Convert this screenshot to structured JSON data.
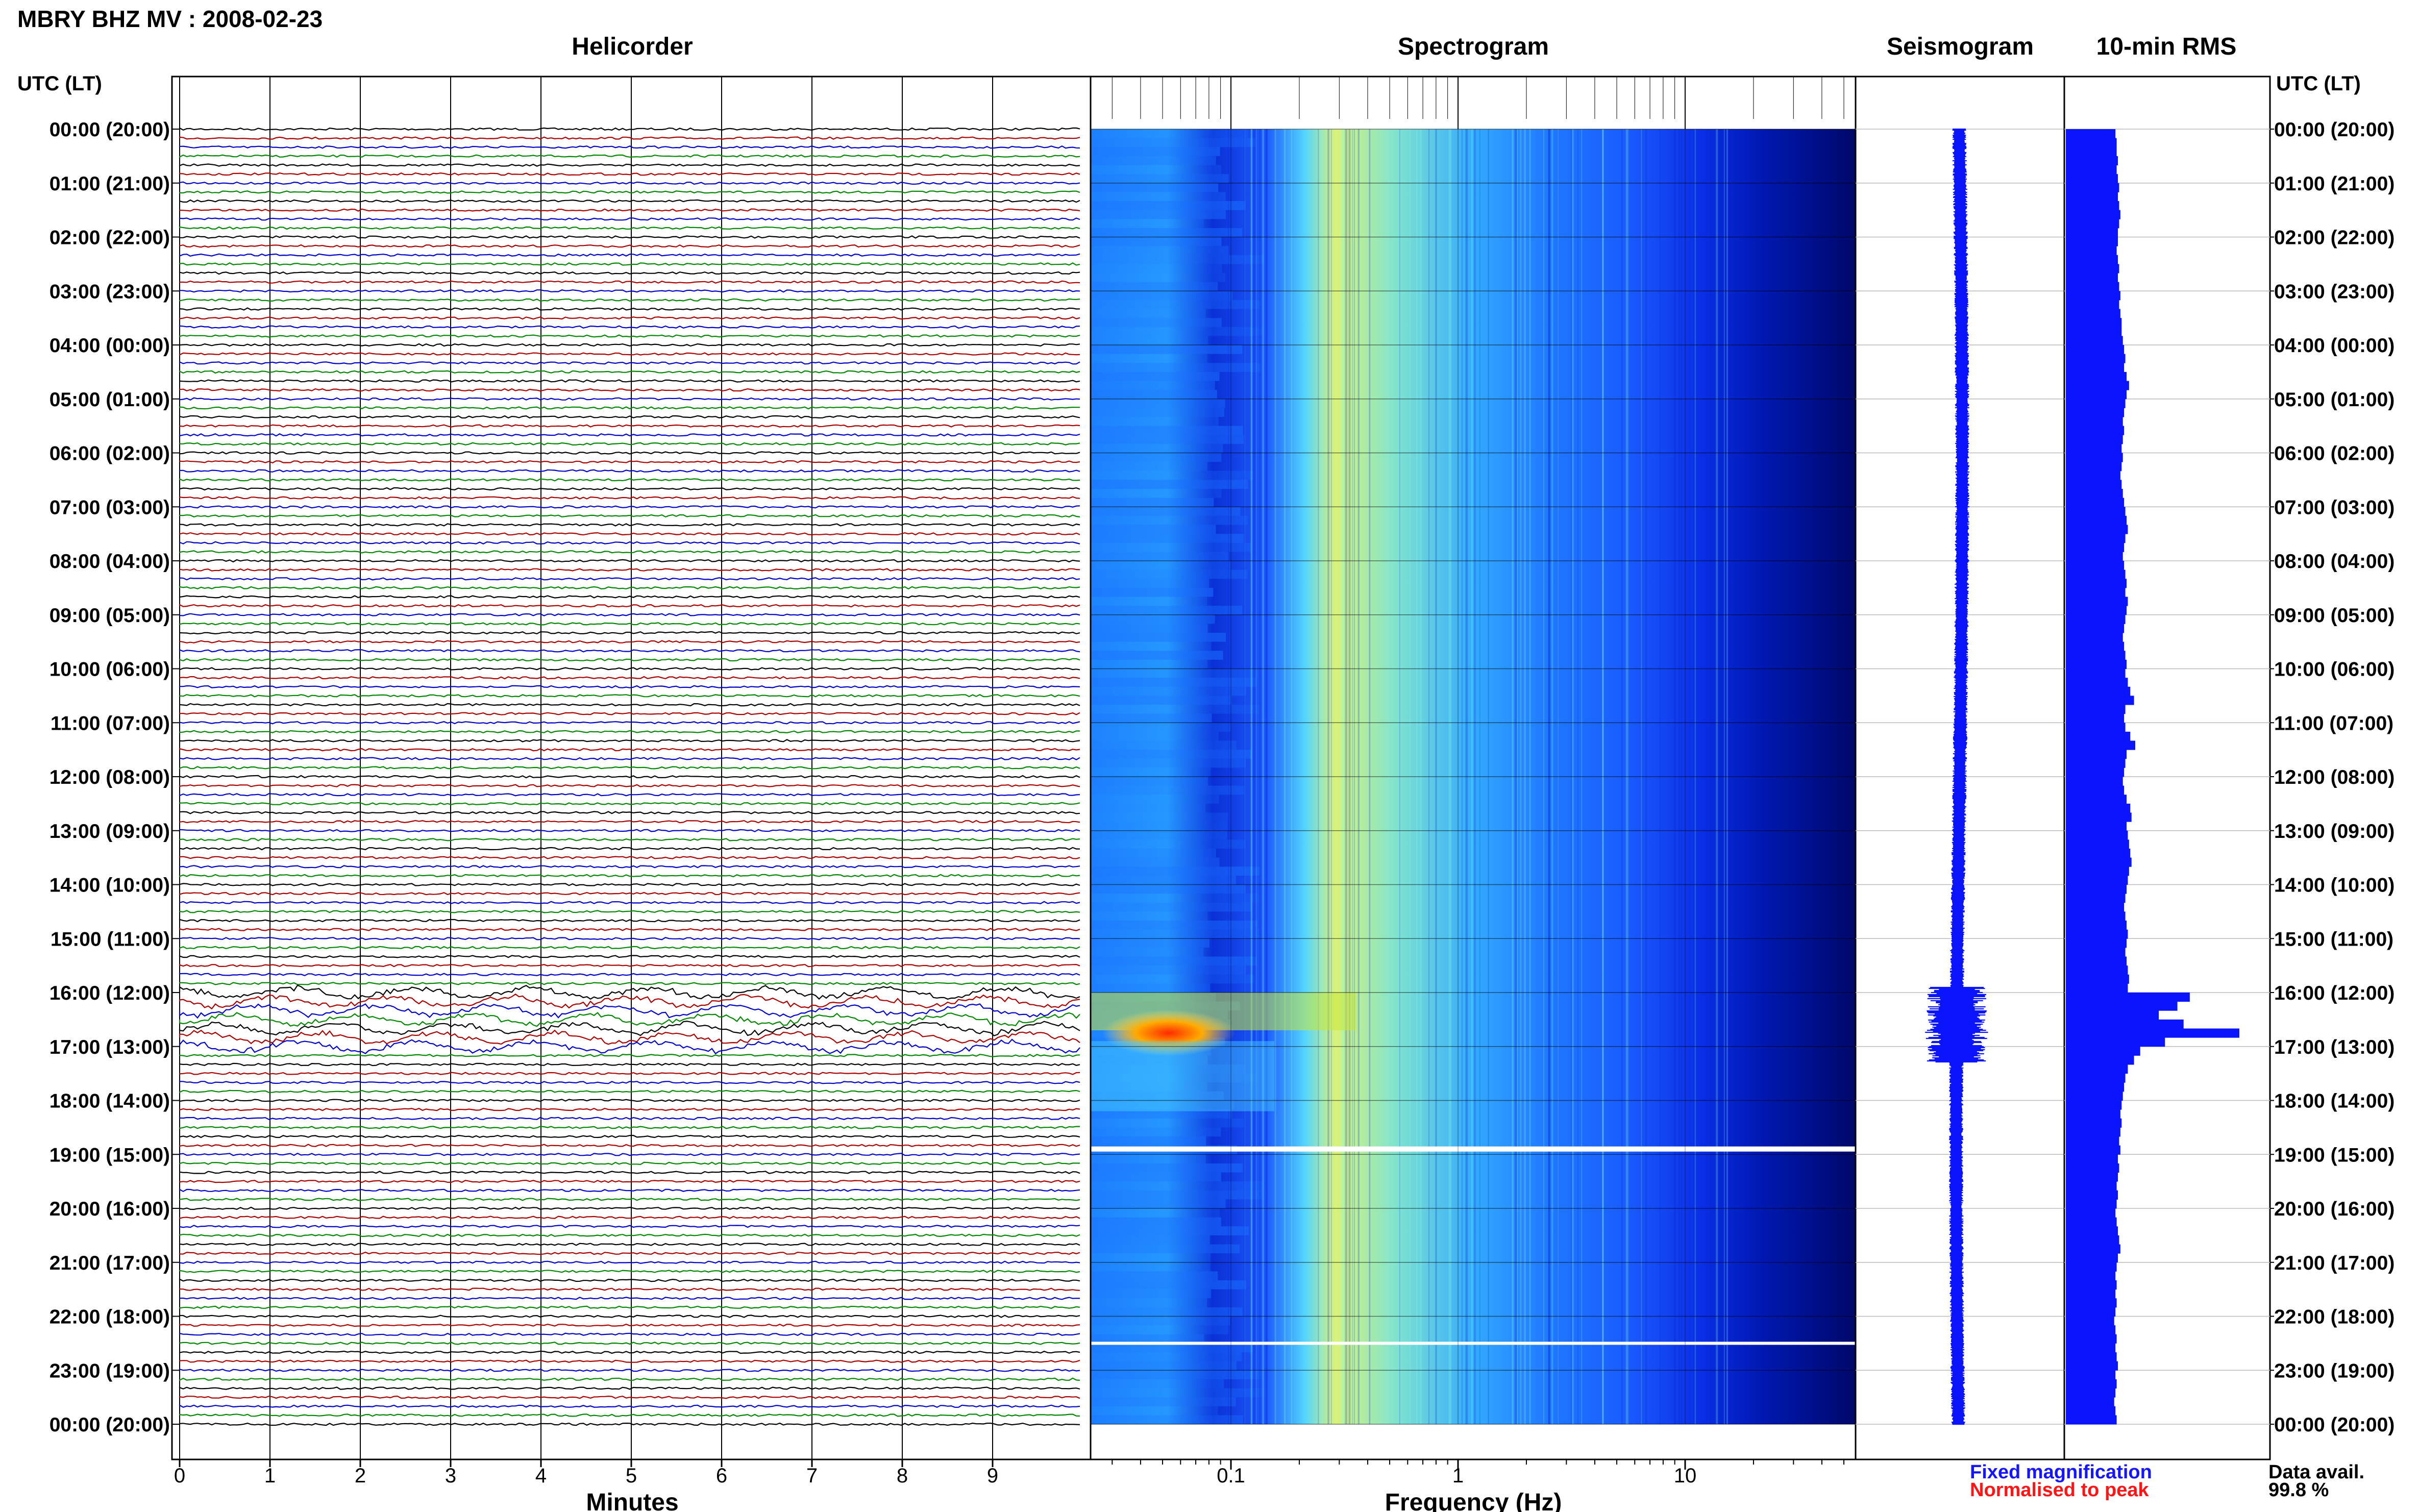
{
  "header": {
    "title": "MBRY BHZ MV : 2008-02-23",
    "time_axis_label_left": "UTC (LT)",
    "time_axis_label_right": "UTC (LT)"
  },
  "panels": {
    "helicorder": "Helicorder",
    "spectrogram": "Spectrogram",
    "seismogram": "Seismogram",
    "rms": "10-min RMS"
  },
  "legend": {
    "fixed": "Fixed magnification",
    "normalised": "Normalised to peak",
    "avail_label": "Data avail.",
    "avail_value": "99.8 %",
    "fixed_color": "#1515ff",
    "normalised_color": "#ff1515"
  },
  "colors": {
    "trace_cycle": [
      "#000000",
      "#aa0000",
      "#0000cc",
      "#008800"
    ],
    "rms_fill": "#0a14ff",
    "seismo": "#0a14ff",
    "spectro_low": "#00007a",
    "spectro_high": "#ff2000"
  },
  "chart_data": [
    {
      "type": "line",
      "name": "helicorder",
      "title": "Helicorder",
      "xlabel": "Minutes",
      "x_ticks": [
        "0",
        "1",
        "2",
        "3",
        "4",
        "5",
        "6",
        "7",
        "8",
        "9"
      ],
      "xlim": [
        0,
        10
      ],
      "time_labels": [
        "00:00 (20:00)",
        "01:00 (21:00)",
        "02:00 (22:00)",
        "03:00 (23:00)",
        "04:00 (00:00)",
        "05:00 (01:00)",
        "06:00 (02:00)",
        "07:00 (03:00)",
        "08:00 (04:00)",
        "09:00 (05:00)",
        "10:00 (06:00)",
        "11:00 (07:00)",
        "12:00 (08:00)",
        "13:00 (09:00)",
        "14:00 (10:00)",
        "15:00 (11:00)",
        "16:00 (12:00)",
        "17:00 (13:00)",
        "18:00 (14:00)",
        "19:00 (15:00)",
        "20:00 (16:00)",
        "21:00 (17:00)",
        "22:00 (18:00)",
        "23:00 (19:00)",
        "00:00 (20:00)"
      ],
      "traces_per_hour": 6,
      "activity_hours": [
        16.0,
        17.0
      ]
    },
    {
      "type": "heatmap",
      "name": "spectrogram",
      "title": "Spectrogram",
      "xlabel": "Frequency (Hz)",
      "x_scale": "log",
      "xlim": [
        0.025,
        50
      ],
      "x_ticks": [
        "0.1",
        "1",
        "10"
      ],
      "gaps_hours": [
        18.9,
        22.5
      ],
      "event_hours": [
        16.0,
        18.0
      ]
    },
    {
      "type": "line",
      "name": "seismogram",
      "title": "Seismogram",
      "event_hours": [
        15.9,
        17.3
      ]
    },
    {
      "type": "bar",
      "name": "rms",
      "title": "10-min RMS",
      "bin_minutes": 10,
      "values": [
        0.4,
        0.41,
        0.41,
        0.42,
        0.41,
        0.42,
        0.43,
        0.42,
        0.43,
        0.44,
        0.43,
        0.42,
        0.42,
        0.41,
        0.42,
        0.43,
        0.42,
        0.43,
        0.44,
        0.43,
        0.44,
        0.45,
        0.45,
        0.46,
        0.47,
        0.48,
        0.47,
        0.49,
        0.51,
        0.49,
        0.48,
        0.47,
        0.46,
        0.47,
        0.46,
        0.45,
        0.46,
        0.45,
        0.44,
        0.45,
        0.46,
        0.47,
        0.48,
        0.49,
        0.5,
        0.48,
        0.47,
        0.46,
        0.47,
        0.48,
        0.49,
        0.48,
        0.5,
        0.49,
        0.48,
        0.47,
        0.46,
        0.47,
        0.48,
        0.49,
        0.48,
        0.5,
        0.52,
        0.55,
        0.48,
        0.47,
        0.48,
        0.52,
        0.56,
        0.49,
        0.48,
        0.47,
        0.46,
        0.47,
        0.49,
        0.52,
        0.53,
        0.49,
        0.5,
        0.51,
        0.52,
        0.53,
        0.51,
        0.5,
        0.49,
        0.48,
        0.47,
        0.48,
        0.49,
        0.5,
        0.49,
        0.48,
        0.49,
        0.5,
        0.51,
        0.5,
        1.0,
        0.9,
        0.75,
        0.95,
        1.4,
        0.8,
        0.6,
        0.55,
        0.5,
        0.48,
        0.47,
        0.46,
        0.45,
        0.44,
        0.45,
        0.44,
        0.43,
        0.44,
        0.42,
        0.43,
        0.42,
        0.41,
        0.42,
        0.41,
        0.4,
        0.41,
        0.42,
        0.43,
        0.44,
        0.42,
        0.41,
        0.4,
        0.41,
        0.4,
        0.41,
        0.4,
        0.39,
        0.4,
        0.41,
        0.4,
        0.41,
        0.42,
        0.4,
        0.41,
        0.4,
        0.39,
        0.4,
        0.41
      ]
    }
  ]
}
